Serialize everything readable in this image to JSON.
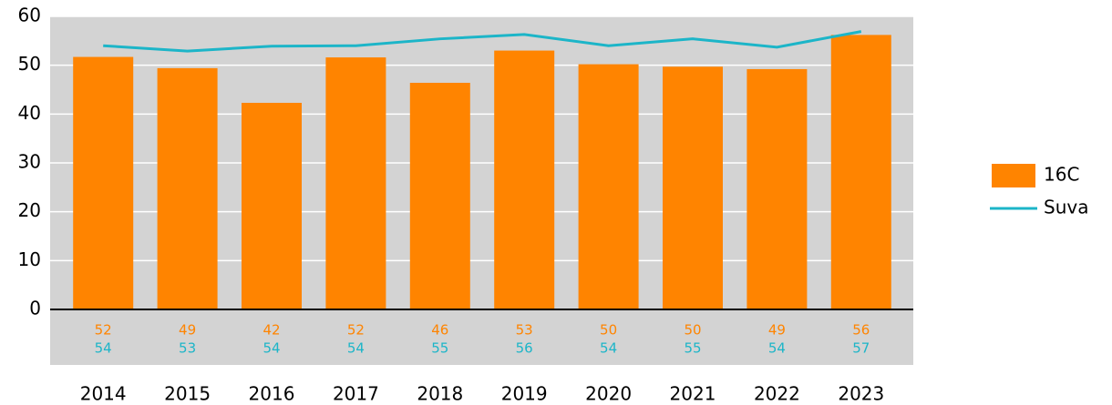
{
  "chart_data": {
    "type": "bar",
    "categories": [
      "2014",
      "2015",
      "2016",
      "2017",
      "2018",
      "2019",
      "2020",
      "2021",
      "2022",
      "2023"
    ],
    "series": [
      {
        "name": "16C",
        "type": "bar",
        "color": "#ff8400",
        "values": [
          51.7,
          49.4,
          42.3,
          51.6,
          46.4,
          53.0,
          50.2,
          49.7,
          49.2,
          56.2
        ],
        "value_labels": [
          "52",
          "49",
          "42",
          "52",
          "46",
          "53",
          "50",
          "50",
          "49",
          "56"
        ]
      },
      {
        "name": "Suva",
        "type": "line",
        "color": "#1cb5c8",
        "values": [
          54.0,
          52.9,
          53.9,
          54.0,
          55.4,
          56.3,
          54.0,
          55.4,
          53.7,
          56.9
        ],
        "value_labels": [
          "54",
          "53",
          "54",
          "54",
          "55",
          "56",
          "54",
          "55",
          "54",
          "57"
        ]
      }
    ],
    "ylim": [
      0,
      60
    ],
    "yticks": [
      0,
      10,
      20,
      30,
      40,
      50,
      60
    ],
    "grid": true,
    "legend": "right"
  }
}
